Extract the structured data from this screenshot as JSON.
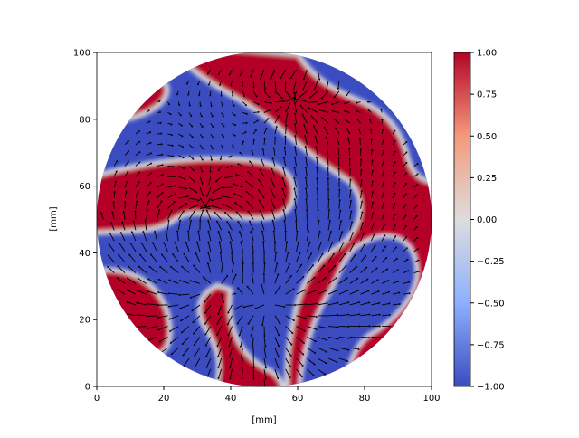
{
  "chart_data": {
    "type": "heatmap",
    "overlay": "quiver",
    "xlabel": "[mm]",
    "ylabel": "[mm]",
    "xlim": [
      0,
      100
    ],
    "ylim": [
      0,
      100
    ],
    "xticks": [
      "0",
      "20",
      "40",
      "60",
      "80",
      "100"
    ],
    "yticks": [
      "0",
      "20",
      "40",
      "60",
      "80",
      "100"
    ],
    "domain": "circle centered (50,50) radius 50",
    "colormap": "coolwarm",
    "clim": [
      -1,
      1
    ],
    "colorbar_ticks": [
      "1.00",
      "0.75",
      "0.50",
      "0.25",
      "0.00",
      "−0.25",
      "−0.50",
      "−0.75",
      "−1.00"
    ],
    "colors": {
      "high": "#b40426",
      "low": "#3b4cc0",
      "mid": "#dddddd"
    }
  }
}
